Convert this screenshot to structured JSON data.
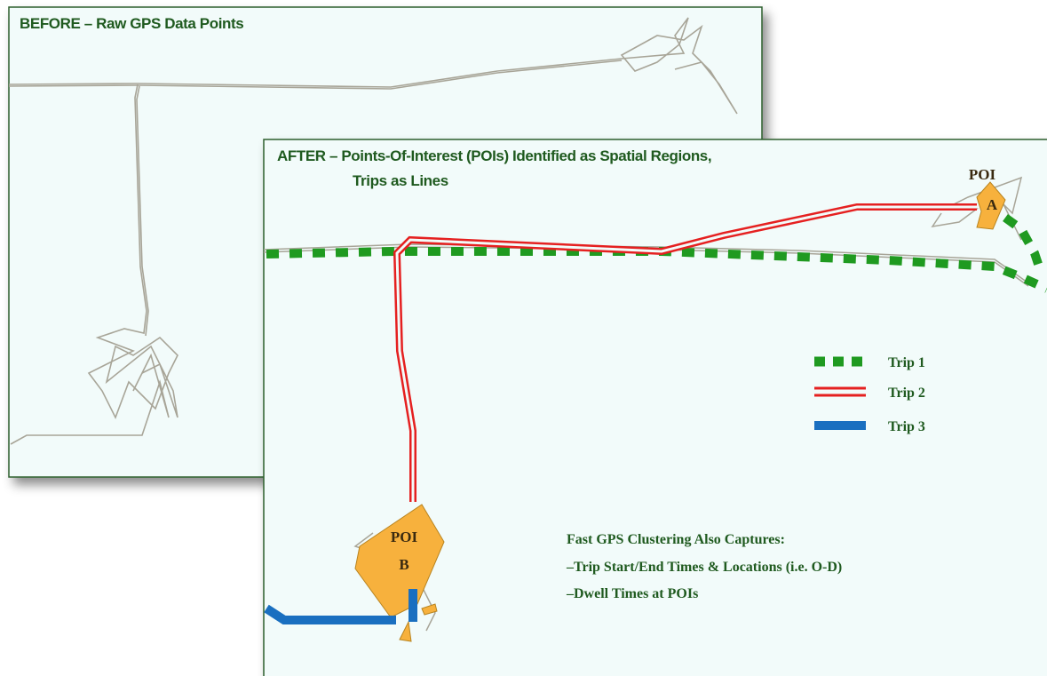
{
  "panels": [
    {
      "title": "BEFORE – Raw GPS Data Points"
    },
    {
      "title": [
        "AFTER – Points-Of-Interest (POIs) Identified as Spatial Regions,",
        "Trips as Lines"
      ]
    }
  ],
  "pois": [
    {
      "label": "POI",
      "id": "A"
    },
    {
      "label": "POI",
      "id": "B"
    }
  ],
  "legend": [
    "Trip 1",
    "Trip 2",
    "Trip 3"
  ],
  "notes": [
    "Fast GPS Clustering Also Captures:",
    "–Trip Start/End Times & Locations (i.e. O-D)",
    "–Dwell Times at POIs"
  ]
}
